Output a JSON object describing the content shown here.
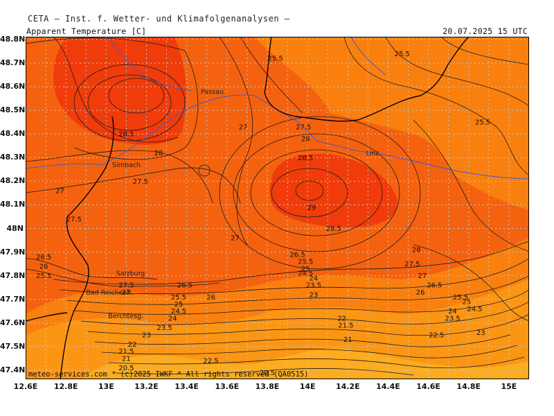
{
  "top_title": "CETA  —  Inst. f. Wetter-  und  Klimafolgenanalysen  —",
  "header": {
    "parameter": "Apparent  Temperature  [C]",
    "datetime": "20.07.2025  15  UTC"
  },
  "credit": "meteo-services.com  *  (c)2025  IWKF  *  All  rights  reserved  (QA0515)",
  "axes": {
    "lat_ticks": [
      "48.8N",
      "48.7N",
      "48.6N",
      "48.5N",
      "48.4N",
      "48.3N",
      "48.2N",
      "48.1N",
      "48N",
      "47.9N",
      "47.8N",
      "47.7N",
      "47.6N",
      "47.5N",
      "47.4N"
    ],
    "lon_ticks": [
      "12.6E",
      "12.8E",
      "13E",
      "13.2E",
      "13.4E",
      "13.6E",
      "13.8E",
      "14E",
      "14.2E",
      "14.4E",
      "14.6E",
      "14.8E",
      "15E"
    ]
  },
  "places": [
    {
      "name": "Passau",
      "lon": 13.47,
      "lat": 48.57
    },
    {
      "name": "Simbach",
      "lon": 13.03,
      "lat": 48.26
    },
    {
      "name": "Linz",
      "lon": 14.29,
      "lat": 48.31
    },
    {
      "name": "Salzburg",
      "lon": 13.05,
      "lat": 47.8
    },
    {
      "name": "Bad Reichenh.",
      "lon": 12.9,
      "lat": 47.72
    },
    {
      "name": "Berchtesg.",
      "lon": 13.01,
      "lat": 47.62
    }
  ],
  "contour_labels": [
    {
      "v": "25.5",
      "lon": 14.47,
      "lat": 48.73
    },
    {
      "v": "25.5",
      "lon": 13.84,
      "lat": 48.71
    },
    {
      "v": "25.5",
      "lon": 14.87,
      "lat": 48.44
    },
    {
      "v": "28.5",
      "lon": 13.1,
      "lat": 48.39
    },
    {
      "v": "28",
      "lon": 13.26,
      "lat": 48.31
    },
    {
      "v": "27",
      "lon": 13.68,
      "lat": 48.42
    },
    {
      "v": "27.5",
      "lon": 13.98,
      "lat": 48.42
    },
    {
      "v": "28",
      "lon": 13.99,
      "lat": 48.37
    },
    {
      "v": "28.5",
      "lon": 13.99,
      "lat": 48.29
    },
    {
      "v": "27.5",
      "lon": 13.17,
      "lat": 48.19
    },
    {
      "v": "27",
      "lon": 12.77,
      "lat": 48.15
    },
    {
      "v": "29",
      "lon": 14.02,
      "lat": 48.08
    },
    {
      "v": "28.5",
      "lon": 14.13,
      "lat": 47.99
    },
    {
      "v": "27.5",
      "lon": 12.84,
      "lat": 48.03
    },
    {
      "v": "27",
      "lon": 13.64,
      "lat": 47.95
    },
    {
      "v": "28",
      "lon": 14.54,
      "lat": 47.9
    },
    {
      "v": "27.5",
      "lon": 14.52,
      "lat": 47.84
    },
    {
      "v": "27",
      "lon": 14.57,
      "lat": 47.79
    },
    {
      "v": "26.5",
      "lon": 14.63,
      "lat": 47.75
    },
    {
      "v": "26",
      "lon": 14.56,
      "lat": 47.72
    },
    {
      "v": "26.5",
      "lon": 12.69,
      "lat": 47.87
    },
    {
      "v": "26",
      "lon": 12.69,
      "lat": 47.83
    },
    {
      "v": "25.5",
      "lon": 12.69,
      "lat": 47.79
    },
    {
      "v": "26.5",
      "lon": 13.95,
      "lat": 47.88
    },
    {
      "v": "25.5",
      "lon": 13.99,
      "lat": 47.85
    },
    {
      "v": "25",
      "lon": 13.99,
      "lat": 47.82
    },
    {
      "v": "24.5",
      "lon": 13.99,
      "lat": 47.8
    },
    {
      "v": "24",
      "lon": 14.03,
      "lat": 47.78
    },
    {
      "v": "23.5",
      "lon": 14.03,
      "lat": 47.75
    },
    {
      "v": "23",
      "lon": 14.03,
      "lat": 47.71
    },
    {
      "v": "27.5",
      "lon": 13.1,
      "lat": 47.75
    },
    {
      "v": "27",
      "lon": 13.1,
      "lat": 47.72
    },
    {
      "v": "26.5",
      "lon": 13.39,
      "lat": 47.75
    },
    {
      "v": "25.5",
      "lon": 13.36,
      "lat": 47.7
    },
    {
      "v": "25",
      "lon": 13.36,
      "lat": 47.67
    },
    {
      "v": "24.5",
      "lon": 13.36,
      "lat": 47.64
    },
    {
      "v": "24",
      "lon": 13.33,
      "lat": 47.61
    },
    {
      "v": "23.5",
      "lon": 13.29,
      "lat": 47.57
    },
    {
      "v": "23",
      "lon": 13.2,
      "lat": 47.54
    },
    {
      "v": "26",
      "lon": 13.52,
      "lat": 47.7
    },
    {
      "v": "22",
      "lon": 13.13,
      "lat": 47.5
    },
    {
      "v": "21.5",
      "lon": 13.1,
      "lat": 47.47
    },
    {
      "v": "21",
      "lon": 13.1,
      "lat": 47.44
    },
    {
      "v": "20.5",
      "lon": 13.1,
      "lat": 47.4
    },
    {
      "v": "22.5",
      "lon": 13.52,
      "lat": 47.43
    },
    {
      "v": "20.5",
      "lon": 13.8,
      "lat": 47.38
    },
    {
      "v": "22",
      "lon": 14.17,
      "lat": 47.61
    },
    {
      "v": "21.5",
      "lon": 14.19,
      "lat": 47.58
    },
    {
      "v": "21",
      "lon": 14.2,
      "lat": 47.52
    },
    {
      "v": "25.5",
      "lon": 14.76,
      "lat": 47.7
    },
    {
      "v": "25",
      "lon": 14.79,
      "lat": 47.68
    },
    {
      "v": "24.5",
      "lon": 14.83,
      "lat": 47.65
    },
    {
      "v": "24",
      "lon": 14.72,
      "lat": 47.64
    },
    {
      "v": "23.5",
      "lon": 14.72,
      "lat": 47.61
    },
    {
      "v": "23",
      "lon": 14.86,
      "lat": 47.55
    },
    {
      "v": "22.5",
      "lon": 14.64,
      "lat": 47.54
    }
  ],
  "colors": {
    "warm_28": "#f03c0a",
    "warm_26": "#f5620f",
    "warm_24": "#f9800f",
    "warm_22": "#fb9614",
    "warm_20": "#fcac1e",
    "river": "#4a55c9",
    "border": "#000000",
    "grid": "#c8c8c8",
    "contour": "#1a1a1a"
  }
}
